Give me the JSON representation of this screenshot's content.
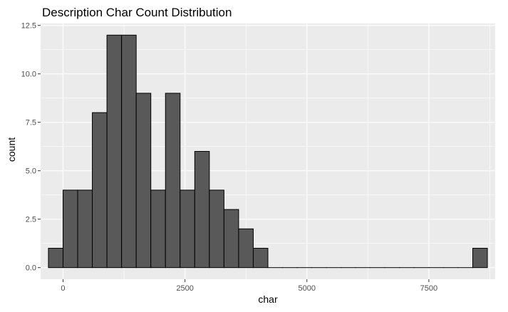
{
  "chart_data": {
    "type": "bar",
    "title": "Description Char Count Distribution",
    "xlabel": "char",
    "ylabel": "count",
    "bin_width": 300,
    "bins": [
      {
        "x": -150,
        "count": 1
      },
      {
        "x": 150,
        "count": 4
      },
      {
        "x": 450,
        "count": 4
      },
      {
        "x": 750,
        "count": 8
      },
      {
        "x": 1050,
        "count": 12
      },
      {
        "x": 1350,
        "count": 12
      },
      {
        "x": 1650,
        "count": 9
      },
      {
        "x": 1950,
        "count": 4
      },
      {
        "x": 2250,
        "count": 9
      },
      {
        "x": 2550,
        "count": 4
      },
      {
        "x": 2850,
        "count": 6
      },
      {
        "x": 3150,
        "count": 4
      },
      {
        "x": 3450,
        "count": 3
      },
      {
        "x": 3750,
        "count": 2
      },
      {
        "x": 4050,
        "count": 1
      },
      {
        "x": 4350,
        "count": 0
      },
      {
        "x": 4650,
        "count": 0
      },
      {
        "x": 4950,
        "count": 0
      },
      {
        "x": 5250,
        "count": 0
      },
      {
        "x": 5550,
        "count": 0
      },
      {
        "x": 5850,
        "count": 0
      },
      {
        "x": 6150,
        "count": 0
      },
      {
        "x": 6450,
        "count": 0
      },
      {
        "x": 6750,
        "count": 0
      },
      {
        "x": 7050,
        "count": 0
      },
      {
        "x": 7350,
        "count": 0
      },
      {
        "x": 7650,
        "count": 0
      },
      {
        "x": 7950,
        "count": 0
      },
      {
        "x": 8250,
        "count": 0
      },
      {
        "x": 8550,
        "count": 1
      }
    ],
    "x_ticks": [
      "0",
      "2500",
      "5000",
      "7500"
    ],
    "y_ticks": [
      "0.0",
      "2.5",
      "5.0",
      "7.5",
      "10.0",
      "12.5"
    ],
    "xlim": [
      -460,
      8860
    ],
    "ylim": [
      -0.6,
      12.6
    ],
    "grid": true,
    "colors": {
      "panel": "#ebebeb",
      "grid": "#ffffff",
      "bar_fill": "#595959",
      "bar_stroke": "#000000"
    }
  }
}
